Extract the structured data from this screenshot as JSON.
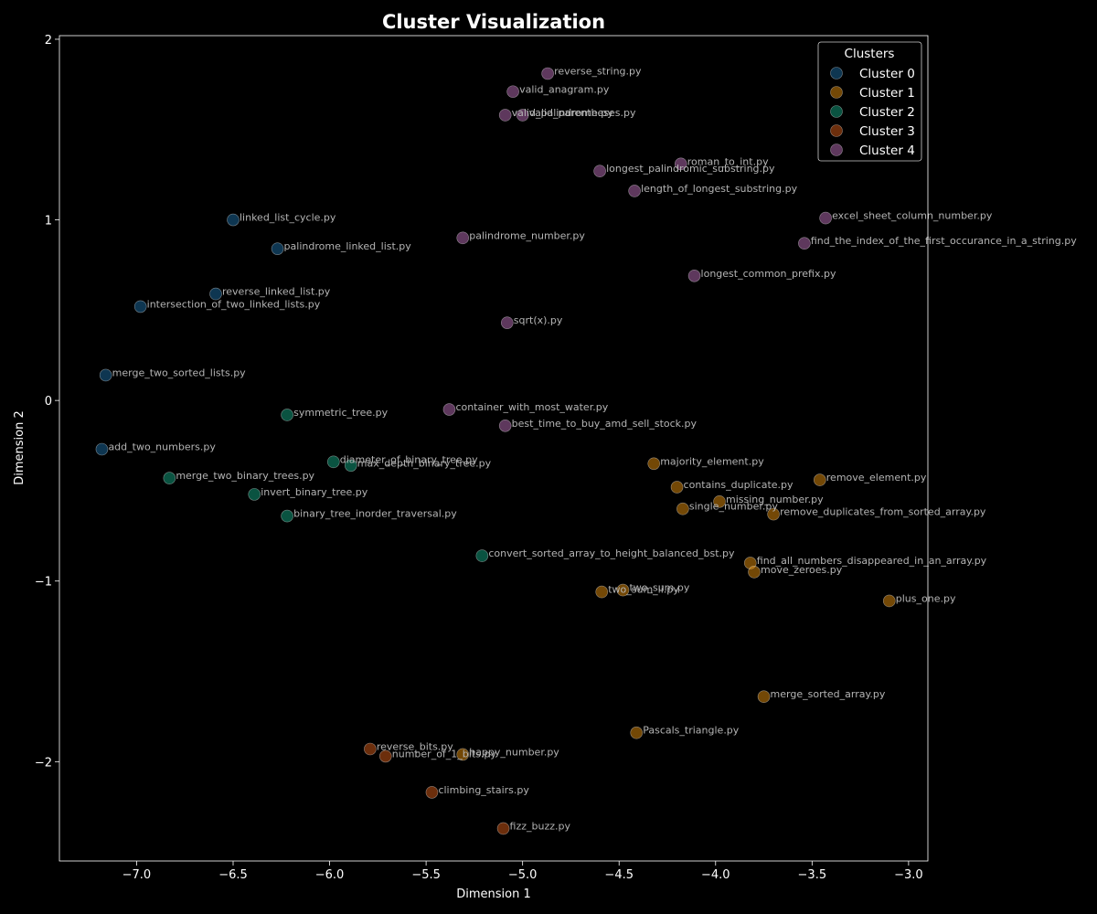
{
  "chart_data": {
    "type": "scatter",
    "title": "Cluster Visualization",
    "xlabel": "Dimension 1",
    "ylabel": "Dimension 2",
    "xlim": [
      -7.4,
      -2.9
    ],
    "ylim": [
      -2.55,
      2.02
    ],
    "xticks": [
      -7.0,
      -6.5,
      -6.0,
      -5.5,
      -5.0,
      -4.5,
      -4.0,
      -3.5,
      -3.0
    ],
    "xtick_labels": [
      "−7.0",
      "−6.5",
      "−6.0",
      "−5.5",
      "−5.0",
      "−4.5",
      "−4.0",
      "−3.5",
      "−3.0"
    ],
    "yticks": [
      -2,
      -1,
      0,
      1,
      2
    ],
    "ytick_labels": [
      "−2",
      "−1",
      "0",
      "1",
      "2"
    ],
    "grid": false,
    "legend": {
      "title": "Clusters",
      "placement": "top-right"
    },
    "series": [
      {
        "name": "Cluster 0",
        "color": "#1f77b4",
        "points": [
          {
            "x": -6.5,
            "y": 1.0,
            "label": "linked_list_cycle.py"
          },
          {
            "x": -6.27,
            "y": 0.84,
            "label": "palindrome_linked_list.py"
          },
          {
            "x": -6.59,
            "y": 0.59,
            "label": "reverse_linked_list.py"
          },
          {
            "x": -6.98,
            "y": 0.52,
            "label": "intersection_of_two_linked_lists.py"
          },
          {
            "x": -7.16,
            "y": 0.14,
            "label": "merge_two_sorted_lists.py"
          },
          {
            "x": -7.18,
            "y": -0.27,
            "label": "add_two_numbers.py"
          }
        ]
      },
      {
        "name": "Cluster 1",
        "color": "#ff9f0e",
        "points": [
          {
            "x": -4.32,
            "y": -0.35,
            "label": "majority_element.py"
          },
          {
            "x": -3.46,
            "y": -0.44,
            "label": "remove_element.py"
          },
          {
            "x": -4.2,
            "y": -0.48,
            "label": "contains_duplicate.py"
          },
          {
            "x": -3.98,
            "y": -0.56,
            "label": "missing_number.py"
          },
          {
            "x": -4.17,
            "y": -0.6,
            "label": "single_number.py"
          },
          {
            "x": -3.7,
            "y": -0.63,
            "label": "remove_duplicates_from_sorted_array.py"
          },
          {
            "x": -3.82,
            "y": -0.9,
            "label": "find_all_numbers_disappeared_in_an_array.py"
          },
          {
            "x": -3.8,
            "y": -0.95,
            "label": "move_zeroes.py"
          },
          {
            "x": -4.48,
            "y": -1.05,
            "label": "two_sum.py"
          },
          {
            "x": -4.59,
            "y": -1.06,
            "label": "two_sum_ii.py"
          },
          {
            "x": -3.1,
            "y": -1.11,
            "label": "plus_one.py"
          },
          {
            "x": -3.75,
            "y": -1.64,
            "label": "merge_sorted_array.py"
          },
          {
            "x": -4.41,
            "y": -1.84,
            "label": "Pascals_triangle.py"
          },
          {
            "x": -5.31,
            "y": -1.96,
            "label": "happy_number.py"
          }
        ]
      },
      {
        "name": "Cluster 2",
        "color": "#17b890",
        "points": [
          {
            "x": -6.22,
            "y": -0.08,
            "label": "symmetric_tree.py"
          },
          {
            "x": -5.98,
            "y": -0.34,
            "label": "diameter_of_binary_tree.py"
          },
          {
            "x": -5.89,
            "y": -0.36,
            "label": "max_depth_binary_tree.py"
          },
          {
            "x": -6.83,
            "y": -0.43,
            "label": "merge_two_binary_trees.py"
          },
          {
            "x": -6.39,
            "y": -0.52,
            "label": "invert_binary_tree.py"
          },
          {
            "x": -6.22,
            "y": -0.64,
            "label": "binary_tree_inorder_traversal.py"
          },
          {
            "x": -5.21,
            "y": -0.86,
            "label": "convert_sorted_array_to_height_balanced_bst.py"
          }
        ]
      },
      {
        "name": "Cluster 3",
        "color": "#f0671a",
        "points": [
          {
            "x": -5.79,
            "y": -1.93,
            "label": "reverse_bits.py"
          },
          {
            "x": -5.71,
            "y": -1.97,
            "label": "number_of_1_bits.py"
          },
          {
            "x": -5.47,
            "y": -2.17,
            "label": "climbing_stairs.py"
          },
          {
            "x": -5.1,
            "y": -2.37,
            "label": "fizz_buzz.py"
          }
        ]
      },
      {
        "name": "Cluster 4",
        "color": "#d07ccf",
        "points": [
          {
            "x": -4.87,
            "y": 1.81,
            "label": "reverse_string.py"
          },
          {
            "x": -5.05,
            "y": 1.71,
            "label": "valid_anagram.py"
          },
          {
            "x": -5.09,
            "y": 1.58,
            "label": "valid_palindrome.py"
          },
          {
            "x": -5.0,
            "y": 1.58,
            "label": "valid_parentheses.py"
          },
          {
            "x": -4.18,
            "y": 1.31,
            "label": "roman_to_int.py"
          },
          {
            "x": -4.6,
            "y": 1.27,
            "label": "longest_palindromic_substring.py"
          },
          {
            "x": -4.42,
            "y": 1.16,
            "label": "length_of_longest_substring.py"
          },
          {
            "x": -3.43,
            "y": 1.01,
            "label": "excel_sheet_column_number.py"
          },
          {
            "x": -5.31,
            "y": 0.9,
            "label": "palindrome_number.py"
          },
          {
            "x": -3.54,
            "y": 0.87,
            "label": "find_the_index_of_the_first_occurance_in_a_string.py"
          },
          {
            "x": -4.11,
            "y": 0.69,
            "label": "longest_common_prefix.py"
          },
          {
            "x": -5.08,
            "y": 0.43,
            "label": "sqrt(x).py"
          },
          {
            "x": -5.38,
            "y": -0.05,
            "label": "container_with_most_water.py"
          },
          {
            "x": -5.09,
            "y": -0.14,
            "label": "best_time_to_buy_amd_sell_stock.py"
          }
        ]
      }
    ]
  }
}
